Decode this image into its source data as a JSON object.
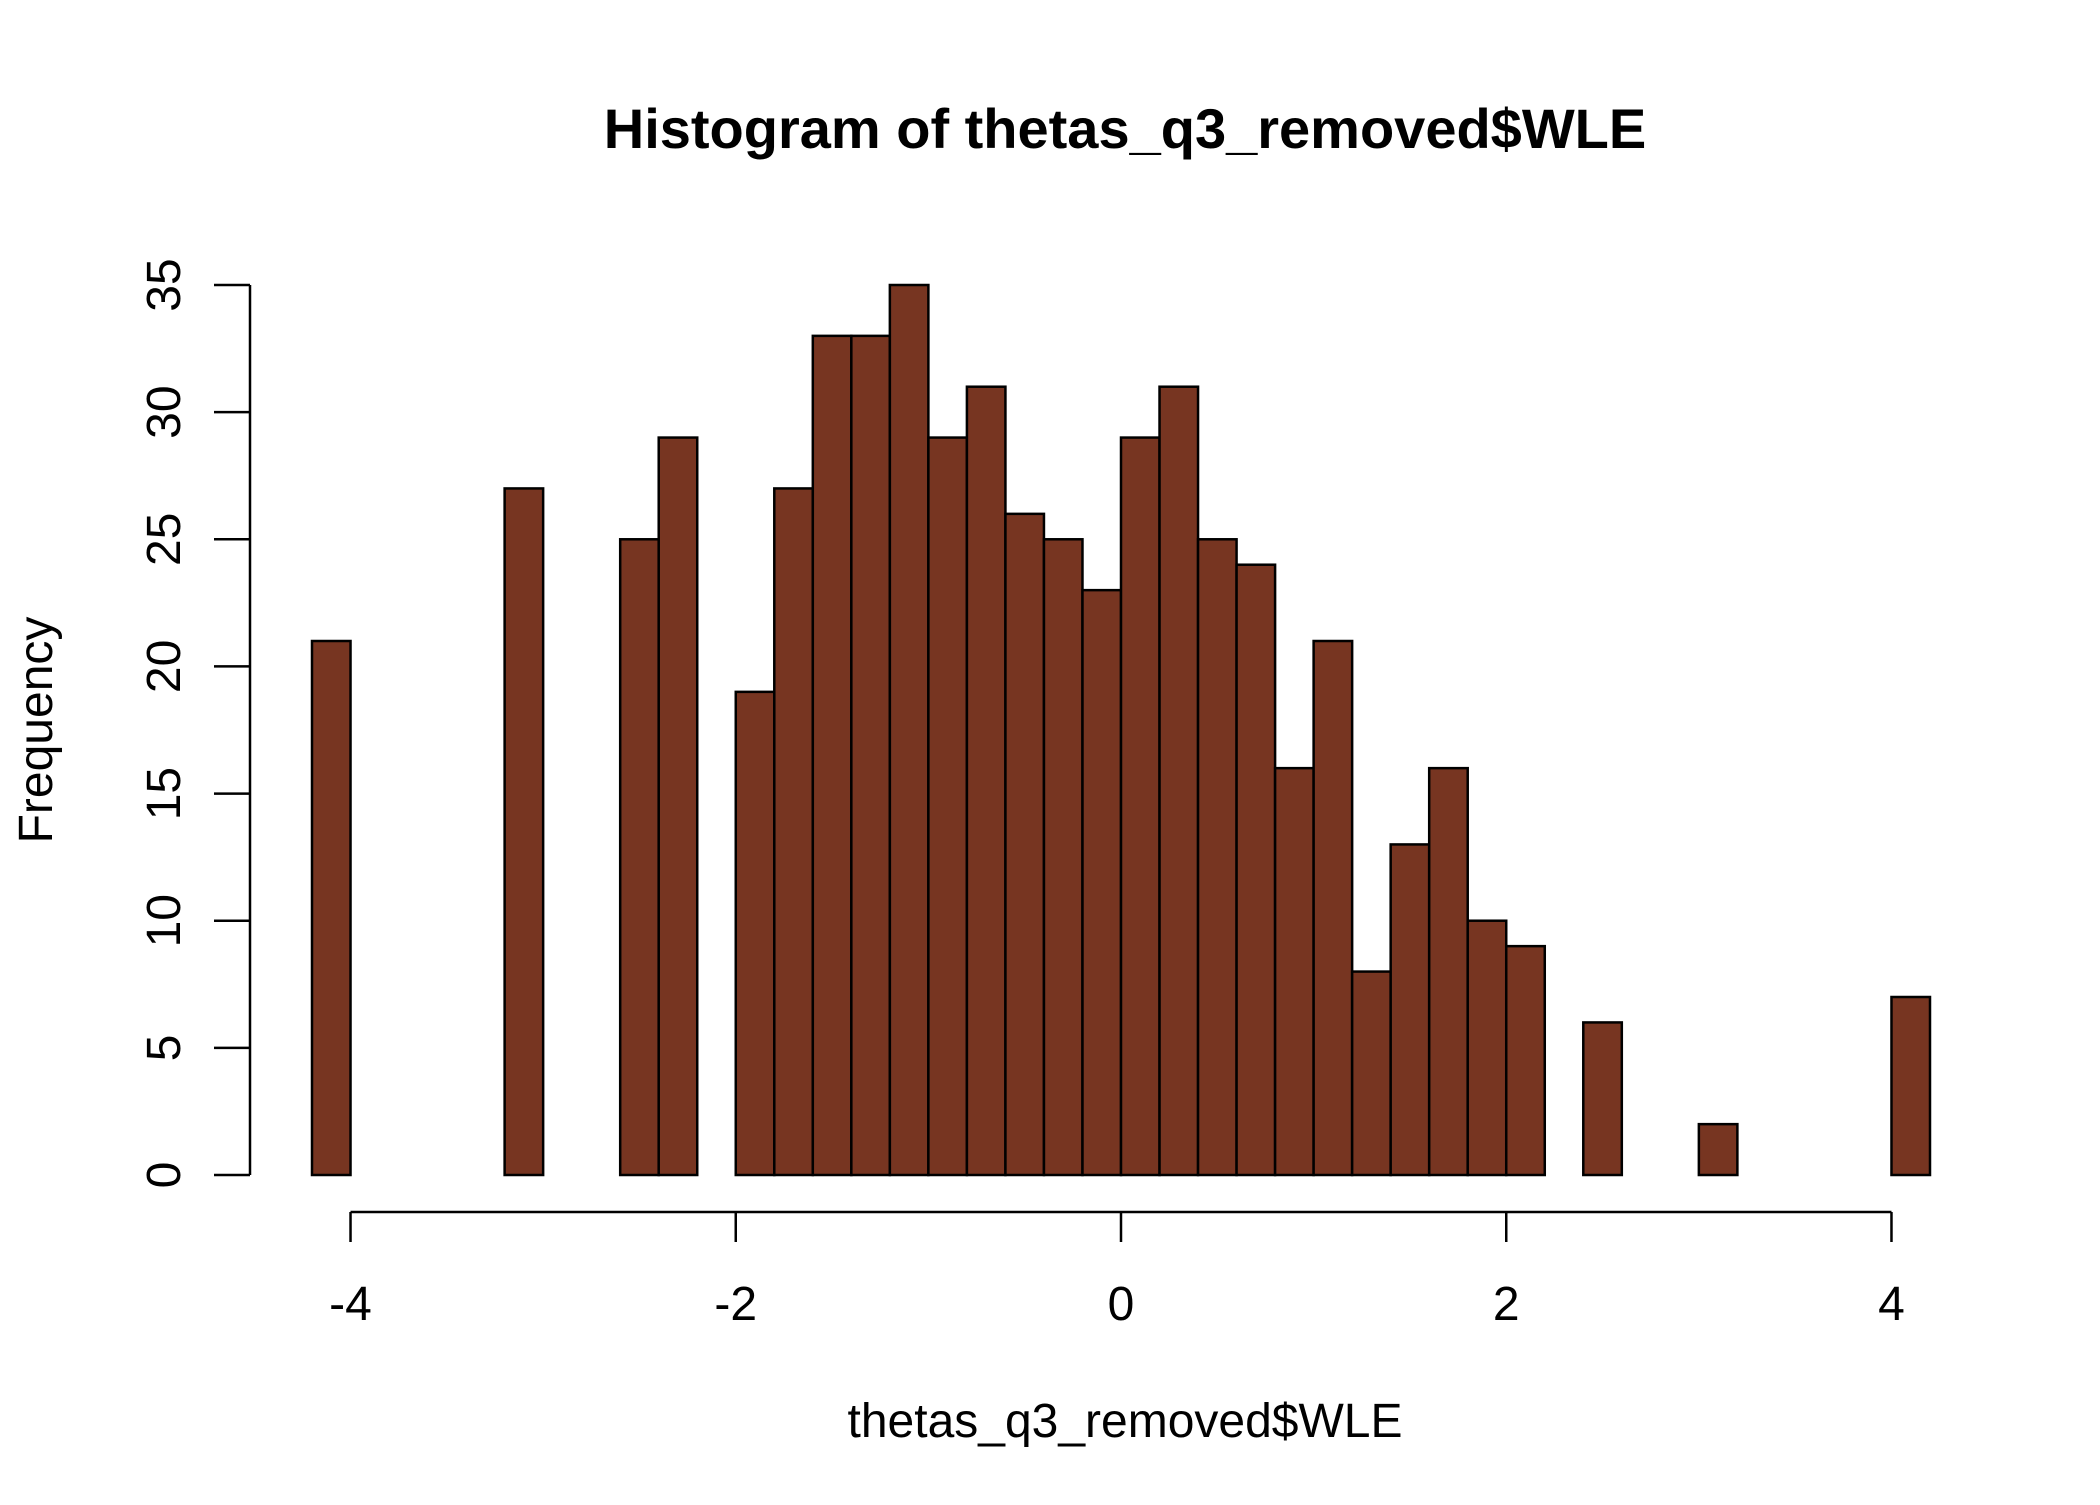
{
  "chart_data": {
    "type": "bar",
    "title": "Histogram of thetas_q3_removed$WLE",
    "xlabel": "thetas_q3_removed$WLE",
    "ylabel": "Frequency",
    "xlim": [
      -4.2,
      4.2
    ],
    "ylim": [
      0,
      35
    ],
    "x_ticks": [
      "-4",
      "-2",
      "0",
      "2",
      "4"
    ],
    "y_ticks": [
      "0",
      "5",
      "10",
      "15",
      "20",
      "25",
      "30",
      "35"
    ],
    "bin_edges": [
      -4.2,
      -4.0,
      -3.8,
      -3.6,
      -3.4,
      -3.2,
      -3.0,
      -2.8,
      -2.6,
      -2.4,
      -2.2,
      -2.0,
      -1.8,
      -1.6,
      -1.4,
      -1.2,
      -1.0,
      -0.8,
      -0.6,
      -0.4,
      -0.2,
      0.0,
      0.2,
      0.4,
      0.6,
      0.8,
      1.0,
      1.2,
      1.4,
      1.6,
      1.8,
      2.0,
      2.2,
      2.4,
      2.6,
      2.8,
      3.0,
      3.2,
      3.4,
      3.6,
      3.8,
      4.0,
      4.2
    ],
    "values": [
      21,
      0,
      0,
      0,
      0,
      27,
      0,
      0,
      25,
      29,
      0,
      19,
      27,
      33,
      33,
      35,
      29,
      31,
      26,
      25,
      23,
      29,
      31,
      25,
      24,
      16,
      21,
      8,
      13,
      16,
      10,
      9,
      0,
      6,
      0,
      0,
      2,
      0,
      0,
      0,
      0,
      7
    ],
    "bar_color": "#773521",
    "border_color": "#000000",
    "grid": false
  }
}
